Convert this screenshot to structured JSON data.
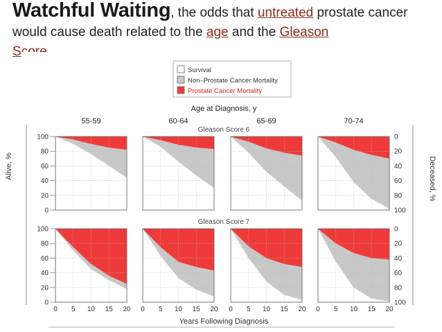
{
  "title": {
    "bold": "Watchful Waiting",
    "p1": ", the odds that ",
    "u1": "untreated",
    "p2": " prostate cancer would cause death  related to the ",
    "u2": "age",
    "p3": " and the ",
    "u3": "Gleason",
    "p4": "S",
    "p5": "core"
  },
  "colors": {
    "survival": "#ffffff",
    "non_prostate": "#c8c8c8",
    "prostate": "#ef3a3a",
    "outline": "#666666",
    "grid": "#bbbbbb"
  },
  "chart_data": {
    "type": "area",
    "title": "Age at Diagnosis, y",
    "xlabel": "Years Following Diagnosis",
    "ylabel_left": "Alive, %",
    "ylabel_right": "Deceased, %",
    "x_ticks": [
      "0",
      "5",
      "10",
      "15",
      "20"
    ],
    "y_ticks_left": [
      "0",
      "20",
      "40",
      "60",
      "80",
      "100"
    ],
    "y_ticks_right": [
      "100",
      "80",
      "60",
      "40",
      "20",
      "0"
    ],
    "xlim": [
      0,
      20
    ],
    "ylim": [
      0,
      100
    ],
    "legend": {
      "position": "top-center",
      "items": [
        {
          "label": "Survival",
          "color": "#ffffff"
        },
        {
          "label": "Non–Prostate Cancer Mortality",
          "color": "#c8c8c8"
        },
        {
          "label": "Prostate Cancer Mortality",
          "color": "#ef3a3a"
        }
      ]
    },
    "age_groups": [
      "55-59",
      "60-64",
      "65-69",
      "70-74"
    ],
    "row_labels": [
      "Gleason Score 6",
      "Gleason Score 7"
    ],
    "x": [
      0,
      5,
      10,
      15,
      20
    ],
    "panels": [
      {
        "row": "Gleason Score 6",
        "age": "55-59",
        "survival": [
          100,
          90,
          76,
          60,
          44
        ],
        "prostate_mortality": [
          0,
          4,
          10,
          15,
          18
        ]
      },
      {
        "row": "Gleason Score 6",
        "age": "60-64",
        "survival": [
          100,
          86,
          66,
          47,
          30
        ],
        "prostate_mortality": [
          0,
          5,
          11,
          15,
          17
        ]
      },
      {
        "row": "Gleason Score 6",
        "age": "65-69",
        "survival": [
          100,
          78,
          52,
          32,
          13
        ],
        "prostate_mortality": [
          0,
          7,
          16,
          22,
          26
        ]
      },
      {
        "row": "Gleason Score 6",
        "age": "70-74",
        "survival": [
          100,
          72,
          38,
          15,
          2
        ],
        "prostate_mortality": [
          0,
          8,
          18,
          25,
          30
        ]
      },
      {
        "row": "Gleason Score 7",
        "age": "55-59",
        "survival": [
          100,
          70,
          45,
          30,
          18
        ],
        "prostate_mortality": [
          0,
          25,
          48,
          64,
          75
        ]
      },
      {
        "row": "Gleason Score 7",
        "age": "60-64",
        "survival": [
          100,
          63,
          33,
          17,
          8
        ],
        "prostate_mortality": [
          0,
          25,
          45,
          52,
          57
        ]
      },
      {
        "row": "Gleason Score 7",
        "age": "65-69",
        "survival": [
          100,
          60,
          28,
          10,
          3
        ],
        "prostate_mortality": [
          0,
          24,
          40,
          48,
          52
        ]
      },
      {
        "row": "Gleason Score 7",
        "age": "70-74",
        "survival": [
          100,
          55,
          20,
          5,
          1
        ],
        "prostate_mortality": [
          0,
          20,
          33,
          40,
          42
        ]
      }
    ]
  }
}
